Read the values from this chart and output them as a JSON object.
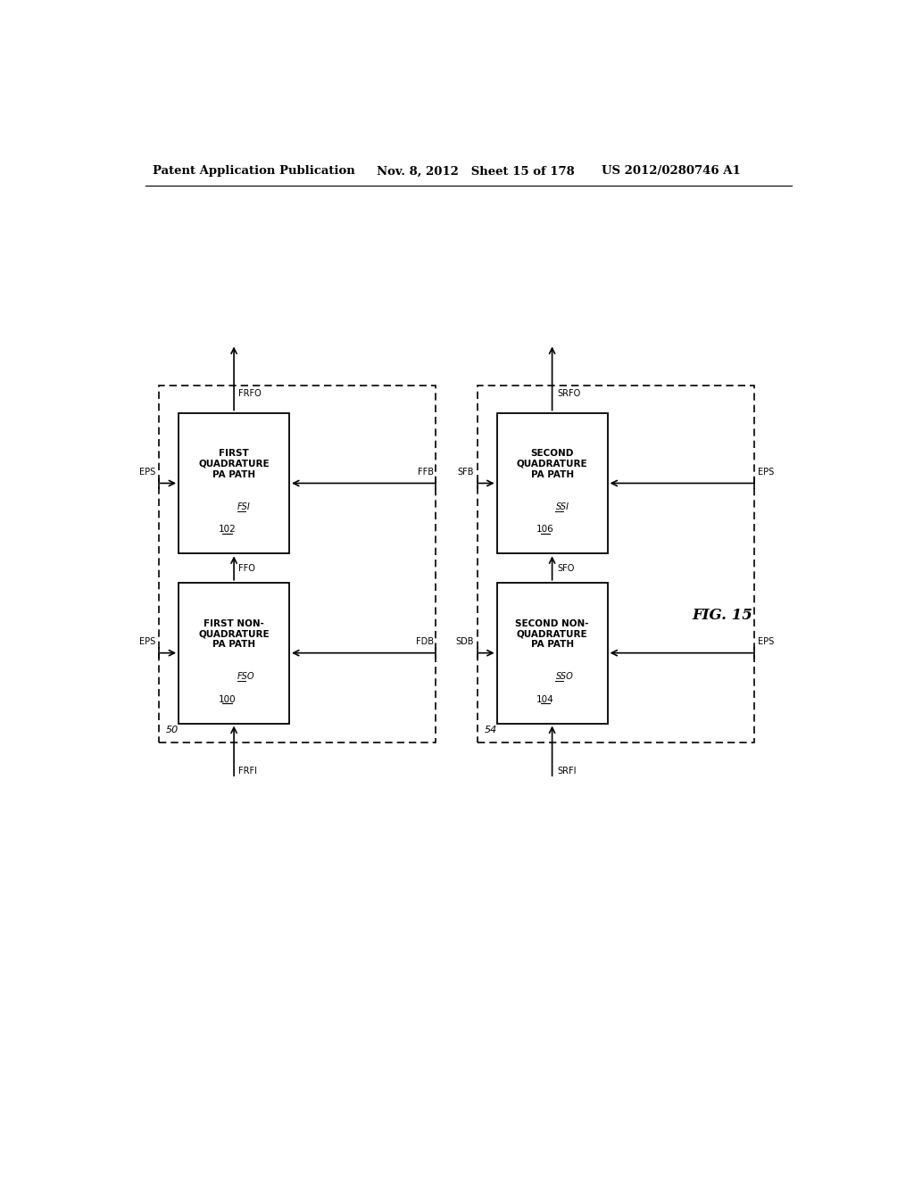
{
  "bg_color": "#ffffff",
  "header_left": "Patent Application Publication",
  "header_mid": "Nov. 8, 2012   Sheet 15 of 178",
  "header_right": "US 2012/0280746 A1",
  "fig_label": "FIG. 15",
  "outer_left_id": "50",
  "outer_right_id": "54",
  "block1_text": "FIRST NON-\nQUADRATURE\nPA PATH",
  "block1_id": "100",
  "block2_text": "FIRST\nQUADRATURE\nPA PATH",
  "block2_id": "102",
  "block3_text": "SECOND NON-\nQUADRATURE\nPA PATH",
  "block3_id": "104",
  "block4_text": "SECOND\nQUADRATURE\nPA PATH",
  "block4_id": "106",
  "label_FSO": "FSO",
  "label_FSI": "FSI",
  "label_FFO": "FFO",
  "label_FFB": "FFB",
  "label_FDB": "FDB",
  "label_FRFI": "FRFI",
  "label_FRFO": "FRFO",
  "label_SSO": "SSO",
  "label_SSI": "SSI",
  "label_SFO": "SFO",
  "label_SFB": "SFB",
  "label_SDB": "SDB",
  "label_SRFI": "SRFI",
  "label_SRFO": "SRFO",
  "label_EPS": "EPS"
}
